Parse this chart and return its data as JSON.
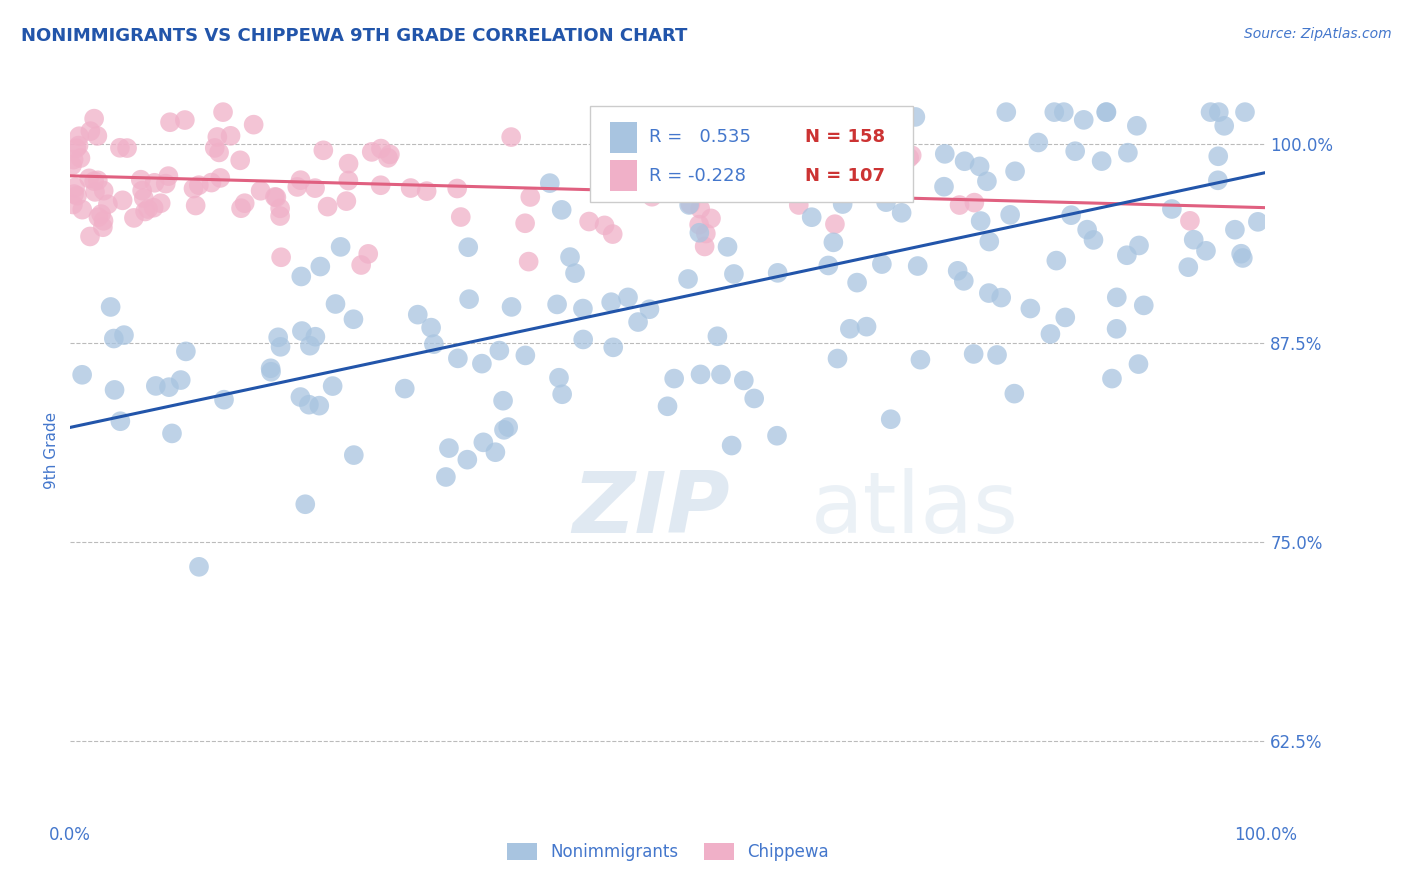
{
  "title": "NONIMMIGRANTS VS CHIPPEWA 9TH GRADE CORRELATION CHART",
  "source_text": "Source: ZipAtlas.com",
  "ylabel": "9th Grade",
  "watermark_zip": "ZIP",
  "watermark_atlas": "atlas",
  "blue_R": 0.535,
  "blue_N": 158,
  "pink_R": -0.228,
  "pink_N": 107,
  "blue_color": "#a8c4e0",
  "pink_color": "#f0b0c8",
  "blue_line_color": "#2255aa",
  "pink_line_color": "#e06080",
  "title_color": "#2255aa",
  "axis_color": "#4477cc",
  "legend_label_color": "#333333",
  "legend_val_color": "#4477cc",
  "legend_N_color": "#cc3333",
  "x_min": 0.0,
  "x_max": 1.0,
  "y_min": 0.575,
  "y_max": 1.04,
  "yticks": [
    0.625,
    0.75,
    0.875,
    1.0
  ],
  "ytick_labels": [
    "62.5%",
    "75.0%",
    "87.5%",
    "100.0%"
  ],
  "grid_color": "#bbbbbb",
  "bg_color": "#ffffff",
  "blue_line_x0": 0.0,
  "blue_line_y0": 0.822,
  "blue_line_x1": 1.0,
  "blue_line_y1": 0.982,
  "pink_line_x0": 0.0,
  "pink_line_y0": 0.98,
  "pink_line_x1": 1.0,
  "pink_line_y1": 0.96
}
